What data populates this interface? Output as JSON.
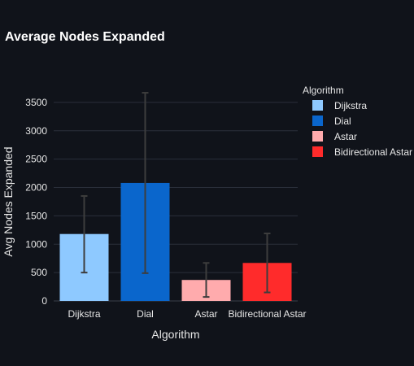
{
  "chart_data": {
    "type": "bar",
    "title": "Average Nodes Expanded",
    "xlabel": "Algorithm",
    "ylabel": "Avg Nodes Expanded",
    "categories": [
      "Dijkstra",
      "Dial",
      "Astar",
      "Bidirectional Astar"
    ],
    "values": [
      1180,
      2080,
      370,
      670
    ],
    "error_low": [
      500,
      490,
      70,
      150
    ],
    "error_high": [
      1850,
      3670,
      670,
      1190
    ],
    "colors": [
      "#8ec9ff",
      "#0a66cc",
      "#ffabad",
      "#ff2b2b"
    ],
    "ylim": [
      0,
      3900
    ],
    "yticks": [
      0,
      500,
      1000,
      1500,
      2000,
      2500,
      3000,
      3500
    ],
    "grid": true,
    "legend": {
      "title": "Algorithm",
      "position": "top-right",
      "entries": [
        "Dijkstra",
        "Dial",
        "Astar",
        "Bidirectional Astar"
      ]
    },
    "background": "#10131a",
    "grid_color": "#2a2f3a",
    "errorbar_color": "#3d3d3d"
  }
}
